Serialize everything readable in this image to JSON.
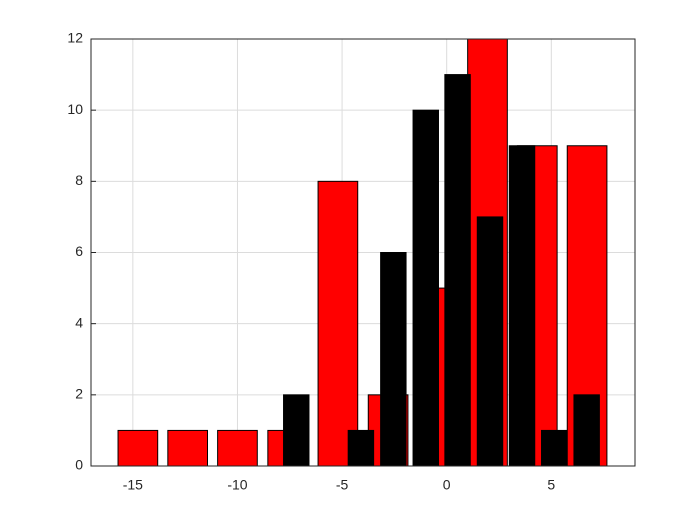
{
  "chart_data": {
    "type": "bar",
    "series": [
      {
        "color": "#ff0000",
        "x": [
          -14.76,
          -12.38,
          -10.0,
          -7.6,
          -5.2,
          -2.8,
          -0.43,
          1.95,
          4.33,
          6.71
        ],
        "values": [
          1,
          1,
          1,
          1,
          8,
          2,
          5,
          12,
          9,
          9
        ]
      },
      {
        "color": "#000000",
        "x": [
          -7.19,
          -4.1,
          -2.55,
          -1.0,
          0.52,
          2.07,
          3.6,
          5.14,
          6.69
        ],
        "values": [
          2,
          1,
          6,
          10,
          11,
          7,
          9,
          1,
          2
        ]
      }
    ],
    "xlim": [
      -17,
      9
    ],
    "xticks": [
      -15,
      -10,
      -5,
      0,
      5
    ],
    "ylim": [
      0,
      12
    ],
    "yticks": [
      0,
      2,
      4,
      6,
      8,
      10,
      12
    ],
    "grid": true
  }
}
